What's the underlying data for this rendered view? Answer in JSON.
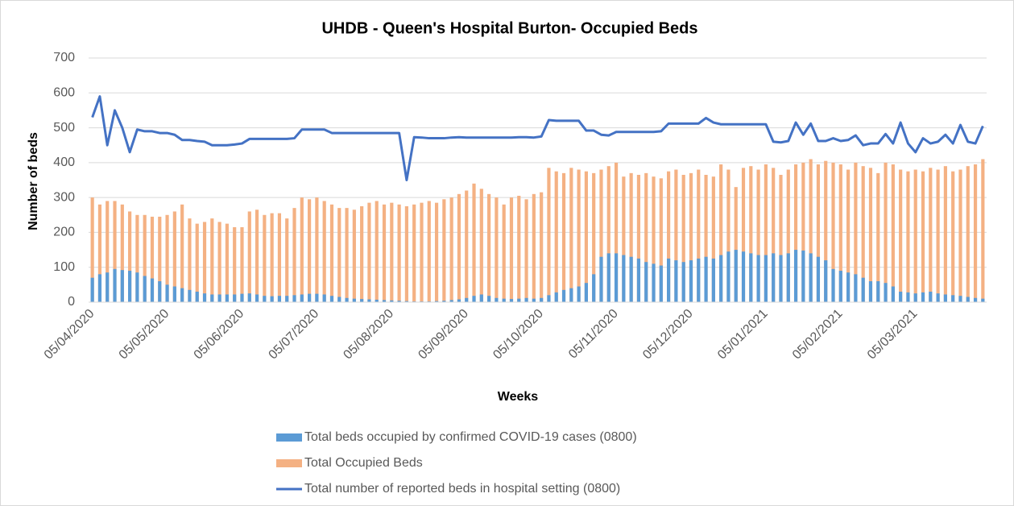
{
  "chart_data": {
    "type": "bar",
    "title": "UHDB  - Queen's Hospital Burton- Occupied Beds",
    "y_label": "Number of beds",
    "x_label": "Weeks",
    "categories": [
      "05/04/2020",
      null,
      null,
      null,
      null,
      null,
      null,
      null,
      null,
      null,
      "05/05/2020",
      null,
      null,
      null,
      null,
      null,
      null,
      null,
      null,
      null,
      "05/06/2020",
      null,
      null,
      null,
      null,
      null,
      null,
      null,
      null,
      null,
      "05/07/2020",
      null,
      null,
      null,
      null,
      null,
      null,
      null,
      null,
      null,
      "05/08/2020",
      null,
      null,
      null,
      null,
      null,
      null,
      null,
      null,
      null,
      "05/09/2020",
      null,
      null,
      null,
      null,
      null,
      null,
      null,
      null,
      null,
      "05/10/2020",
      null,
      null,
      null,
      null,
      null,
      null,
      null,
      null,
      null,
      "05/11/2020",
      null,
      null,
      null,
      null,
      null,
      null,
      null,
      null,
      null,
      "05/12/2020",
      null,
      null,
      null,
      null,
      null,
      null,
      null,
      null,
      null,
      "05/01/2021",
      null,
      null,
      null,
      null,
      null,
      null,
      null,
      null,
      null,
      "05/02/2021",
      null,
      null,
      null,
      null,
      null,
      null,
      null,
      null,
      null,
      "05/03/2021",
      null,
      null,
      null,
      null,
      null,
      null,
      null,
      null,
      null
    ],
    "series": [
      {
        "name": "Total beds occupied by confirmed COVID-19 cases (0800)",
        "type": "bar",
        "color": "#5b9bd5",
        "values": [
          70,
          80,
          85,
          95,
          92,
          90,
          85,
          75,
          68,
          60,
          50,
          45,
          40,
          35,
          30,
          25,
          22,
          22,
          22,
          22,
          24,
          25,
          22,
          18,
          17,
          18,
          18,
          20,
          22,
          24,
          24,
          22,
          18,
          15,
          12,
          10,
          9,
          8,
          7,
          6,
          5,
          4,
          3,
          2,
          2,
          2,
          3,
          4,
          6,
          8,
          12,
          18,
          22,
          18,
          12,
          10,
          9,
          10,
          12,
          10,
          12,
          20,
          28,
          35,
          40,
          45,
          55,
          80,
          130,
          140,
          140,
          135,
          130,
          125,
          115,
          110,
          105,
          125,
          120,
          115,
          120,
          125,
          130,
          125,
          135,
          145,
          150,
          145,
          140,
          135,
          135,
          140,
          135,
          140,
          150,
          148,
          140,
          130,
          120,
          95,
          90,
          85,
          80,
          70,
          60,
          60,
          55,
          45,
          30,
          28,
          25,
          28,
          30,
          25,
          22,
          20,
          18,
          15,
          12,
          10
        ]
      },
      {
        "name": "Total Occupied Beds",
        "type": "bar",
        "color": "#f4b183",
        "values": [
          300,
          280,
          290,
          290,
          280,
          260,
          250,
          250,
          245,
          245,
          250,
          260,
          280,
          240,
          225,
          230,
          240,
          230,
          225,
          215,
          215,
          260,
          265,
          250,
          255,
          255,
          240,
          270,
          300,
          295,
          300,
          290,
          280,
          270,
          270,
          265,
          275,
          285,
          290,
          280,
          285,
          280,
          275,
          280,
          285,
          290,
          285,
          295,
          300,
          310,
          320,
          340,
          325,
          310,
          300,
          280,
          300,
          305,
          295,
          310,
          315,
          385,
          375,
          370,
          385,
          380,
          375,
          370,
          380,
          390,
          400,
          360,
          370,
          365,
          370,
          360,
          355,
          375,
          380,
          365,
          370,
          380,
          365,
          360,
          395,
          380,
          330,
          385,
          390,
          380,
          395,
          385,
          365,
          380,
          395,
          400,
          410,
          395,
          405,
          400,
          395,
          380,
          400,
          390,
          385,
          370,
          400,
          395,
          380,
          375,
          380,
          375,
          385,
          380,
          390,
          375,
          380,
          390,
          395,
          410
        ]
      },
      {
        "name": "Total number of reported beds in hospital setting (0800)",
        "type": "line",
        "color": "#4472c4",
        "values": [
          530,
          590,
          450,
          550,
          500,
          430,
          495,
          490,
          490,
          485,
          485,
          480,
          465,
          465,
          462,
          460,
          450,
          450,
          450,
          452,
          455,
          468,
          468,
          468,
          468,
          468,
          468,
          470,
          495,
          495,
          495,
          495,
          485,
          485,
          485,
          485,
          485,
          485,
          485,
          485,
          485,
          485,
          350,
          473,
          472,
          470,
          470,
          470,
          472,
          473,
          472,
          472,
          472,
          472,
          472,
          472,
          472,
          473,
          473,
          472,
          475,
          522,
          520,
          520,
          520,
          520,
          492,
          492,
          480,
          478,
          488,
          488,
          488,
          488,
          488,
          488,
          490,
          512,
          512,
          512,
          512,
          512,
          528,
          515,
          510,
          510,
          510,
          510,
          510,
          510,
          510,
          460,
          458,
          462,
          515,
          480,
          512,
          462,
          462,
          470,
          462,
          465,
          478,
          450,
          455,
          455,
          482,
          455,
          515,
          455,
          430,
          470,
          455,
          460,
          480,
          455,
          508,
          460,
          455,
          505
        ]
      }
    ],
    "ylim": [
      0,
      700
    ],
    "yticks": [
      0,
      100,
      200,
      300,
      400,
      500,
      600,
      700
    ],
    "grid": true,
    "legend": "bottom"
  }
}
